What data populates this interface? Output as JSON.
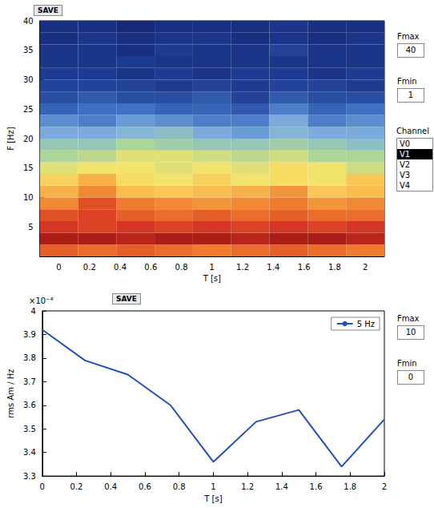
{
  "chart_data": [
    {
      "type": "heatmap",
      "xlabel": "T [s]",
      "ylabel": "F [Hz]",
      "x": [
        0,
        0.25,
        0.5,
        0.75,
        1.0,
        1.25,
        1.5,
        1.75,
        2.0
      ],
      "y": [
        1,
        3,
        5,
        7,
        9,
        11,
        13,
        15,
        17,
        19,
        21,
        23,
        25,
        27,
        29,
        31,
        33,
        35,
        37,
        39
      ],
      "cells": [
        [
          3.3,
          3.2,
          3.3,
          3.2,
          3.1,
          3.2,
          3.3,
          3.2,
          3.1
        ],
        [
          3.9,
          3.9,
          3.8,
          3.9,
          3.9,
          3.8,
          3.9,
          3.9,
          3.8
        ],
        [
          3.6,
          3.5,
          3.6,
          3.5,
          3.6,
          3.5,
          3.6,
          3.5,
          3.6
        ],
        [
          3.4,
          3.5,
          3.3,
          3.2,
          3.3,
          3.2,
          3.3,
          3.2,
          3.2
        ],
        [
          3.0,
          3.4,
          3.1,
          3.0,
          2.9,
          3.0,
          3.1,
          2.9,
          3.0
        ],
        [
          2.7,
          3.0,
          2.6,
          2.5,
          2.6,
          2.7,
          2.9,
          2.5,
          2.6
        ],
        [
          2.4,
          2.7,
          2.3,
          2.2,
          2.4,
          2.2,
          2.3,
          2.2,
          2.5
        ],
        [
          2.1,
          2.2,
          2.2,
          2.1,
          2.2,
          2.1,
          2.3,
          2.2,
          2.0
        ],
        [
          1.8,
          1.9,
          2.1,
          2.1,
          2.0,
          1.9,
          2.0,
          1.8,
          1.8
        ],
        [
          1.6,
          1.6,
          1.8,
          1.7,
          1.6,
          1.6,
          1.7,
          1.6,
          1.5
        ],
        [
          1.3,
          1.3,
          1.4,
          1.5,
          1.3,
          1.2,
          1.4,
          1.3,
          1.3
        ],
        [
          1.1,
          1.0,
          1.2,
          1.1,
          1.0,
          1.0,
          1.3,
          1.0,
          1.1
        ],
        [
          0.8,
          0.9,
          0.9,
          0.8,
          0.8,
          0.7,
          1.0,
          0.8,
          0.9
        ],
        [
          0.6,
          0.7,
          0.6,
          0.6,
          0.7,
          0.5,
          0.7,
          0.6,
          0.6
        ],
        [
          0.5,
          0.5,
          0.5,
          0.4,
          0.5,
          0.4,
          0.5,
          0.5,
          0.4
        ],
        [
          0.4,
          0.4,
          0.3,
          0.4,
          0.3,
          0.4,
          0.4,
          0.3,
          0.4
        ],
        [
          0.3,
          0.3,
          0.4,
          0.3,
          0.3,
          0.3,
          0.3,
          0.3,
          0.3
        ],
        [
          0.3,
          0.3,
          0.2,
          0.4,
          0.3,
          0.3,
          0.5,
          0.3,
          0.3
        ],
        [
          0.2,
          0.3,
          0.2,
          0.3,
          0.3,
          0.2,
          0.3,
          0.2,
          0.3
        ],
        [
          0.2,
          0.2,
          0.1,
          0.2,
          0.2,
          0.2,
          0.3,
          0.2,
          0.2
        ]
      ],
      "color_range": [
        0,
        4
      ],
      "xlim": [
        -0.125,
        2.125
      ],
      "xticks": [
        0,
        0.2,
        0.4,
        0.6,
        0.8,
        1,
        1.2,
        1.4,
        1.6,
        1.8,
        2
      ],
      "ylim": [
        0,
        40
      ],
      "yticks": [
        5,
        10,
        15,
        20,
        25,
        30,
        35,
        40
      ],
      "grid": false
    },
    {
      "type": "line",
      "xlabel": "T [s]",
      "ylabel": "rms Am / Hz",
      "y_multiplier_label": "×10⁻⁴",
      "x": [
        0,
        0.25,
        0.5,
        0.75,
        1.0,
        1.25,
        1.5,
        1.75,
        2.0
      ],
      "series": [
        {
          "name": "5 Hz",
          "color": "#1f4fbf",
          "values": [
            0.000392,
            0.000379,
            0.000373,
            0.00036,
            0.000336,
            0.000353,
            0.000358,
            0.000334,
            0.000354
          ]
        }
      ],
      "xlim": [
        0,
        2
      ],
      "xticks": [
        0,
        0.2,
        0.4,
        0.6,
        0.8,
        1,
        1.2,
        1.4,
        1.6,
        1.8,
        2
      ],
      "ylim": [
        0.00033,
        0.0004
      ],
      "yticks": [
        {
          "value": 0.00033,
          "label": "3.3"
        },
        {
          "value": 0.00034,
          "label": "3.4"
        },
        {
          "value": 0.00035,
          "label": "3.5"
        },
        {
          "value": 0.00036,
          "label": "3.6"
        },
        {
          "value": 0.00037,
          "label": "3.7"
        },
        {
          "value": 0.00038,
          "label": "3.8"
        },
        {
          "value": 0.00039,
          "label": "3.9"
        },
        {
          "value": 0.0004,
          "label": "4"
        }
      ],
      "legend": "upper right",
      "grid": false
    }
  ],
  "controls": {
    "save_button": "SAVE",
    "top_panel": {
      "fmax_label": "Fmax",
      "fmax": 40,
      "fmin_label": "Fmin",
      "fmin": 1,
      "channel_label": "Channel",
      "channels": [
        "V0",
        "V1",
        "V2",
        "V3",
        "V4"
      ],
      "selected_channel": "V1"
    },
    "bottom_panel": {
      "fmax_label": "Fmax",
      "fmax": 10,
      "fmin_label": "Fmin",
      "fmin": 0
    }
  }
}
